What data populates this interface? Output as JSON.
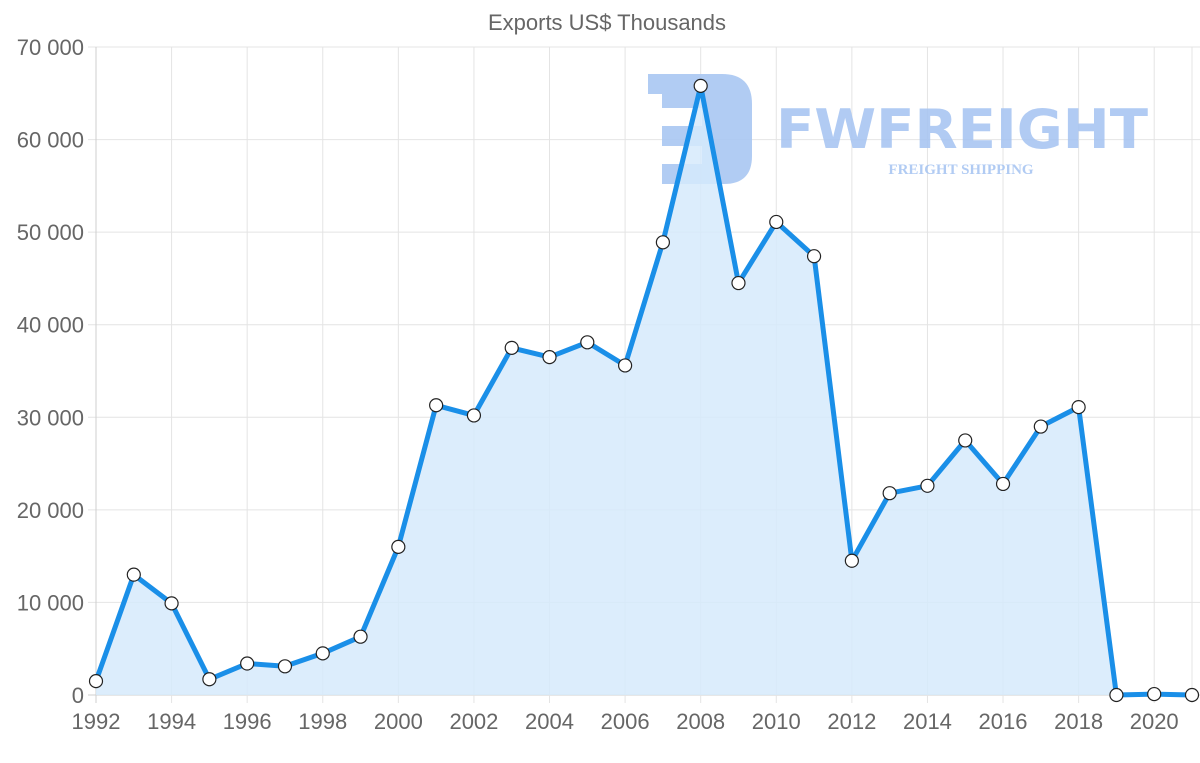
{
  "chart_data": {
    "type": "area",
    "title": "Exports US$ Thousands",
    "xlabel": "",
    "ylabel": "",
    "x": [
      1992,
      1993,
      1994,
      1995,
      1996,
      1997,
      1998,
      1999,
      2000,
      2001,
      2002,
      2003,
      2004,
      2005,
      2006,
      2007,
      2008,
      2009,
      2010,
      2011,
      2012,
      2013,
      2014,
      2015,
      2016,
      2017,
      2018,
      2019,
      2020,
      2021
    ],
    "series": [
      {
        "name": "Exports US$ Thousands",
        "values": [
          1500,
          13000,
          9900,
          1700,
          3400,
          3100,
          4500,
          6300,
          16000,
          31300,
          30200,
          37500,
          36500,
          38100,
          35600,
          48900,
          65800,
          44500,
          51100,
          47400,
          14500,
          21800,
          22600,
          27500,
          22800,
          29000,
          31100,
          0,
          100,
          0
        ],
        "color": "#1a8fe8",
        "fill": "#d6eafc"
      }
    ],
    "xticks": [
      "1992",
      "1994",
      "1996",
      "1998",
      "2000",
      "2002",
      "2004",
      "2006",
      "2008",
      "2010",
      "2012",
      "2014",
      "2016",
      "2018",
      "2020"
    ],
    "yticks": [
      0,
      10000,
      20000,
      30000,
      40000,
      50000,
      60000,
      70000
    ],
    "ytick_labels": [
      "0",
      "10 000",
      "20 000",
      "30 000",
      "40 000",
      "50 000",
      "60 000",
      "70 000"
    ],
    "ylim": [
      0,
      70000
    ],
    "xlim": [
      1992,
      2021
    ],
    "grid": true,
    "legend": null
  },
  "watermark": {
    "brand": "FWFREIGHT",
    "tagline": "FREIGHT SHIPPING",
    "color": "#a9c6f2"
  }
}
